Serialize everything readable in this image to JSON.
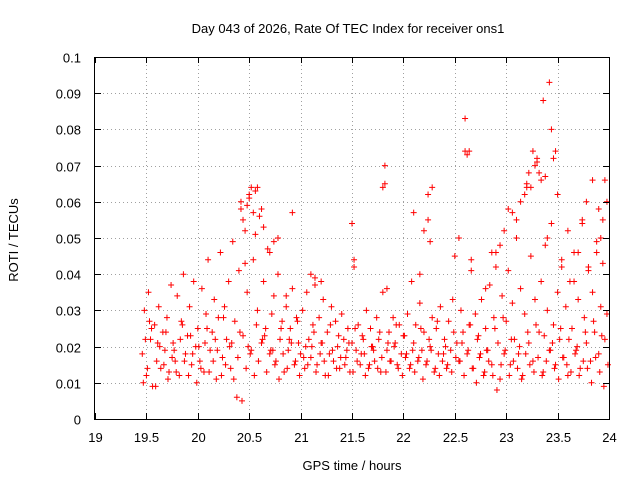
{
  "chart_data": {
    "type": "scatter",
    "title": "Day 043 of 2026, Rate Of TEC Index for receiver ons1",
    "xlabel": "GPS time / hours",
    "ylabel": "ROTI / TECUs",
    "xlim": [
      19,
      24
    ],
    "ylim": [
      0,
      0.1
    ],
    "x_ticks": [
      "19",
      "19.5",
      "20",
      "20.5",
      "21",
      "21.5",
      "22",
      "22.5",
      "23",
      "23.5",
      "24"
    ],
    "y_ticks": [
      "0",
      "0.01",
      "0.02",
      "0.03",
      "0.04",
      "0.05",
      "0.06",
      "0.07",
      "0.08",
      "0.09",
      "0.1"
    ],
    "grid": true,
    "marker": "+",
    "color": "#ff0000",
    "series": [
      {
        "name": "ons1",
        "x": [
          19.46,
          19.48,
          19.5,
          19.52,
          19.54,
          19.56,
          19.58,
          19.6,
          19.62,
          19.64,
          19.66,
          19.68,
          19.7,
          19.72,
          19.74,
          19.76,
          19.78,
          19.8,
          19.82,
          19.84,
          19.86,
          19.88,
          19.9,
          19.92,
          19.94,
          19.96,
          19.98,
          20.0,
          20.02,
          20.04,
          20.06,
          20.08,
          20.1,
          20.12,
          20.14,
          20.16,
          20.18,
          20.2,
          20.22,
          20.24,
          20.26,
          20.28,
          20.3,
          20.32,
          20.34,
          20.36,
          20.38,
          20.4,
          20.42,
          20.44,
          20.46,
          20.48,
          20.5,
          20.52,
          20.54,
          20.56,
          20.58,
          20.6,
          20.62,
          20.64,
          20.66,
          20.68,
          20.7,
          20.72,
          20.74,
          20.76,
          20.78,
          20.8,
          20.82,
          20.84,
          20.86,
          20.88,
          20.9,
          20.92,
          20.94,
          20.96,
          20.98,
          21.0,
          21.02,
          21.04,
          21.06,
          21.08,
          21.1,
          21.12,
          21.14,
          21.16,
          21.18,
          21.2,
          21.22,
          21.24,
          21.26,
          21.28,
          21.3,
          21.32,
          21.34,
          21.36,
          21.38,
          21.4,
          21.42,
          21.44,
          21.46,
          21.48,
          21.5,
          21.52,
          21.54,
          21.56,
          21.58,
          21.6,
          21.62,
          21.64,
          21.66,
          21.68,
          21.7,
          21.72,
          21.74,
          21.76,
          21.78,
          21.8,
          21.82,
          21.84,
          21.86,
          21.88,
          21.9,
          21.92,
          21.94,
          21.96,
          21.98,
          22.0,
          22.02,
          22.04,
          22.06,
          22.08,
          22.1,
          22.12,
          22.14,
          22.16,
          22.18,
          22.2,
          22.22,
          22.24,
          22.26,
          22.28,
          22.3,
          22.32,
          22.34,
          22.36,
          22.38,
          22.4,
          22.42,
          22.44,
          22.46,
          22.48,
          22.5,
          22.52,
          22.54,
          22.56,
          22.58,
          22.6,
          22.62,
          22.64,
          22.66,
          22.68,
          22.7,
          22.72,
          22.74,
          22.76,
          22.78,
          22.8,
          22.82,
          22.84,
          22.86,
          22.88,
          22.9,
          22.92,
          22.94,
          22.96,
          22.98,
          23.0,
          23.02,
          23.04,
          23.06,
          23.08,
          23.1,
          23.12,
          23.14,
          23.16,
          23.18,
          23.2,
          23.22,
          23.24,
          23.26,
          23.28,
          23.3,
          23.32,
          23.34,
          23.36,
          23.38,
          23.4,
          23.42,
          23.44,
          23.46,
          23.48,
          23.5,
          23.52,
          23.54,
          23.56,
          23.58,
          23.6,
          23.62,
          23.64,
          23.66,
          23.68,
          23.7,
          23.72,
          23.74,
          23.76,
          23.78,
          23.8,
          23.82,
          23.84,
          23.86,
          23.88,
          23.9,
          23.92,
          23.94,
          23.96,
          23.98,
          19.47,
          19.51,
          19.55,
          19.59,
          19.63,
          19.67,
          19.71,
          19.75,
          19.79,
          19.83,
          19.87,
          19.91,
          19.95,
          19.99,
          20.03,
          20.07,
          20.11,
          20.15,
          20.19,
          20.23,
          20.27,
          20.31,
          20.35,
          20.39,
          20.43,
          20.47,
          20.51,
          20.55,
          20.59,
          20.63,
          20.67,
          20.71,
          20.75,
          20.79,
          20.83,
          20.87,
          20.91,
          20.95,
          20.99,
          21.03,
          21.07,
          21.11,
          21.15,
          21.19,
          21.23,
          21.27,
          21.31,
          21.35,
          21.39,
          21.43,
          21.47,
          21.51,
          21.55,
          21.59,
          21.63,
          21.67,
          21.71,
          21.75,
          21.79,
          21.83,
          21.87,
          21.91,
          21.95,
          21.99,
          22.03,
          22.07,
          22.11,
          22.15,
          22.19,
          22.23,
          22.27,
          22.31,
          22.35,
          22.39,
          22.43,
          22.47,
          22.51,
          22.55,
          22.59,
          22.63,
          22.67,
          22.71,
          22.75,
          22.79,
          22.83,
          22.87,
          22.91,
          22.95,
          22.99,
          23.03,
          23.07,
          23.11,
          23.15,
          23.19,
          23.23,
          23.27,
          23.31,
          23.35,
          23.39,
          23.43,
          23.47,
          23.51,
          23.55,
          23.59,
          23.63,
          23.67,
          23.71,
          23.75,
          23.79,
          23.83,
          23.87,
          23.91,
          23.95,
          23.99,
          19.49,
          19.53,
          19.61,
          19.69,
          19.77,
          19.85,
          19.93,
          20.01,
          20.09,
          20.17,
          20.25,
          20.33,
          20.41,
          20.49,
          20.57,
          20.65,
          20.73,
          20.81,
          20.89,
          20.97,
          21.05,
          21.13,
          21.21,
          21.29,
          21.37,
          21.45,
          21.53,
          21.61,
          21.69,
          21.77,
          21.85,
          21.93,
          22.01,
          22.09,
          22.17,
          22.25,
          22.33,
          22.41,
          22.49,
          22.57,
          22.65,
          22.73,
          22.81,
          22.89,
          22.97,
          23.05,
          23.13,
          23.21,
          23.29,
          23.37,
          23.45,
          23.53,
          23.61,
          23.69,
          23.77,
          23.85,
          23.93,
          20.42,
          20.44,
          20.46,
          20.48,
          20.5,
          20.52,
          20.54,
          20.56,
          20.58,
          20.62,
          20.64,
          20.7,
          20.74,
          20.78,
          20.86,
          20.92,
          21.1,
          21.14,
          21.2,
          21.5,
          21.52,
          21.8,
          21.82,
          21.84,
          22.1,
          22.16,
          22.2,
          22.24,
          22.26,
          22.28,
          22.54,
          22.6,
          22.62,
          22.64,
          22.66,
          22.8,
          22.86,
          22.9,
          22.94,
          22.98,
          23.02,
          23.06,
          23.1,
          23.14,
          23.18,
          23.2,
          23.22,
          23.24,
          23.26,
          23.28,
          23.3,
          23.32,
          23.34,
          23.36,
          23.38,
          23.4,
          23.42,
          23.44,
          23.46,
          23.48,
          23.5,
          23.54,
          23.6,
          23.66,
          23.7,
          23.74,
          23.78,
          23.8,
          23.84,
          23.88,
          23.9,
          23.92,
          23.94,
          23.96,
          23.98
        ],
        "y": [
          0.018,
          0.03,
          0.012,
          0.035,
          0.022,
          0.009,
          0.026,
          0.016,
          0.031,
          0.014,
          0.024,
          0.019,
          0.028,
          0.013,
          0.037,
          0.021,
          0.016,
          0.034,
          0.012,
          0.027,
          0.04,
          0.018,
          0.023,
          0.031,
          0.015,
          0.038,
          0.02,
          0.025,
          0.016,
          0.036,
          0.013,
          0.029,
          0.044,
          0.019,
          0.024,
          0.033,
          0.011,
          0.028,
          0.046,
          0.017,
          0.031,
          0.022,
          0.038,
          0.014,
          0.049,
          0.027,
          0.006,
          0.041,
          0.058,
          0.023,
          0.052,
          0.035,
          0.061,
          0.019,
          0.044,
          0.063,
          0.03,
          0.056,
          0.021,
          0.038,
          0.025,
          0.047,
          0.018,
          0.029,
          0.034,
          0.016,
          0.04,
          0.022,
          0.027,
          0.013,
          0.031,
          0.019,
          0.025,
          0.036,
          0.015,
          0.028,
          0.021,
          0.018,
          0.03,
          0.014,
          0.035,
          0.022,
          0.017,
          0.026,
          0.039,
          0.015,
          0.028,
          0.021,
          0.033,
          0.012,
          0.024,
          0.018,
          0.031,
          0.016,
          0.027,
          0.02,
          0.014,
          0.029,
          0.022,
          0.017,
          0.025,
          0.013,
          0.021,
          0.044,
          0.019,
          0.026,
          0.015,
          0.023,
          0.018,
          0.03,
          0.014,
          0.025,
          0.02,
          0.016,
          0.028,
          0.022,
          0.013,
          0.035,
          0.065,
          0.019,
          0.024,
          0.016,
          0.028,
          0.021,
          0.015,
          0.026,
          0.018,
          0.023,
          0.017,
          0.029,
          0.014,
          0.038,
          0.021,
          0.026,
          0.016,
          0.032,
          0.019,
          0.024,
          0.015,
          0.055,
          0.02,
          0.028,
          0.013,
          0.025,
          0.018,
          0.031,
          0.016,
          0.022,
          0.014,
          0.027,
          0.019,
          0.033,
          0.045,
          0.021,
          0.016,
          0.03,
          0.024,
          0.074,
          0.018,
          0.026,
          0.041,
          0.014,
          0.029,
          0.022,
          0.017,
          0.033,
          0.012,
          0.025,
          0.019,
          0.037,
          0.015,
          0.028,
          0.046,
          0.021,
          0.011,
          0.034,
          0.018,
          0.027,
          0.041,
          0.015,
          0.032,
          0.022,
          0.05,
          0.018,
          0.036,
          0.012,
          0.029,
          0.064,
          0.021,
          0.045,
          0.016,
          0.033,
          0.071,
          0.024,
          0.038,
          0.013,
          0.048,
          0.03,
          0.019,
          0.054,
          0.026,
          0.015,
          0.035,
          0.022,
          0.042,
          0.017,
          0.031,
          0.012,
          0.038,
          0.025,
          0.046,
          0.019,
          0.033,
          0.014,
          0.055,
          0.028,
          0.021,
          0.041,
          0.016,
          0.035,
          0.024,
          0.049,
          0.018,
          0.031,
          0.043,
          0.022,
          0.029,
          0.01,
          0.014,
          0.025,
          0.009,
          0.02,
          0.015,
          0.011,
          0.017,
          0.013,
          0.022,
          0.016,
          0.012,
          0.018,
          0.01,
          0.014,
          0.021,
          0.013,
          0.016,
          0.019,
          0.012,
          0.015,
          0.02,
          0.011,
          0.017,
          0.005,
          0.014,
          0.018,
          0.012,
          0.016,
          0.022,
          0.013,
          0.019,
          0.015,
          0.011,
          0.018,
          0.014,
          0.021,
          0.016,
          0.012,
          0.017,
          0.015,
          0.02,
          0.013,
          0.018,
          0.016,
          0.012,
          0.019,
          0.014,
          0.017,
          0.015,
          0.021,
          0.013,
          0.016,
          0.018,
          0.012,
          0.015,
          0.019,
          0.014,
          0.017,
          0.013,
          0.016,
          0.02,
          0.014,
          0.012,
          0.018,
          0.015,
          0.013,
          0.017,
          0.011,
          0.016,
          0.019,
          0.014,
          0.012,
          0.018,
          0.015,
          0.013,
          0.017,
          0.016,
          0.012,
          0.019,
          0.014,
          0.01,
          0.018,
          0.013,
          0.016,
          0.012,
          0.008,
          0.015,
          0.019,
          0.012,
          0.016,
          0.014,
          0.011,
          0.018,
          0.015,
          0.013,
          0.017,
          0.012,
          0.016,
          0.019,
          0.014,
          0.011,
          0.017,
          0.015,
          0.013,
          0.018,
          0.012,
          0.016,
          0.014,
          0.01,
          0.017,
          0.013,
          0.009,
          0.015,
          0.022,
          0.027,
          0.021,
          0.024,
          0.019,
          0.026,
          0.023,
          0.02,
          0.025,
          0.022,
          0.028,
          0.021,
          0.024,
          0.02,
          0.026,
          0.023,
          0.019,
          0.025,
          0.022,
          0.027,
          0.02,
          0.024,
          0.021,
          0.026,
          0.023,
          0.019,
          0.025,
          0.022,
          0.02,
          0.024,
          0.021,
          0.026,
          0.023,
          0.019,
          0.025,
          0.022,
          0.027,
          0.02,
          0.024,
          0.021,
          0.026,
          0.023,
          0.019,
          0.025,
          0.028,
          0.022,
          0.02,
          0.024,
          0.026,
          0.023,
          0.021,
          0.025,
          0.022,
          0.02,
          0.024,
          0.027,
          0.023,
          0.06,
          0.055,
          0.043,
          0.059,
          0.062,
          0.064,
          0.057,
          0.051,
          0.064,
          0.058,
          0.053,
          0.046,
          0.049,
          0.05,
          0.034,
          0.057,
          0.04,
          0.037,
          0.038,
          0.054,
          0.042,
          0.064,
          0.07,
          0.036,
          0.057,
          0.04,
          0.052,
          0.062,
          0.049,
          0.064,
          0.05,
          0.083,
          0.073,
          0.074,
          0.044,
          0.036,
          0.046,
          0.042,
          0.048,
          0.052,
          0.058,
          0.057,
          0.055,
          0.06,
          0.062,
          0.065,
          0.068,
          0.064,
          0.074,
          0.07,
          0.072,
          0.068,
          0.066,
          0.088,
          0.067,
          0.05,
          0.093,
          0.08,
          0.072,
          0.074,
          0.062,
          0.044,
          0.052,
          0.038,
          0.046,
          0.054,
          0.06,
          0.042,
          0.066,
          0.046,
          0.058,
          0.05,
          0.055,
          0.066,
          0.06
        ]
      }
    ]
  }
}
